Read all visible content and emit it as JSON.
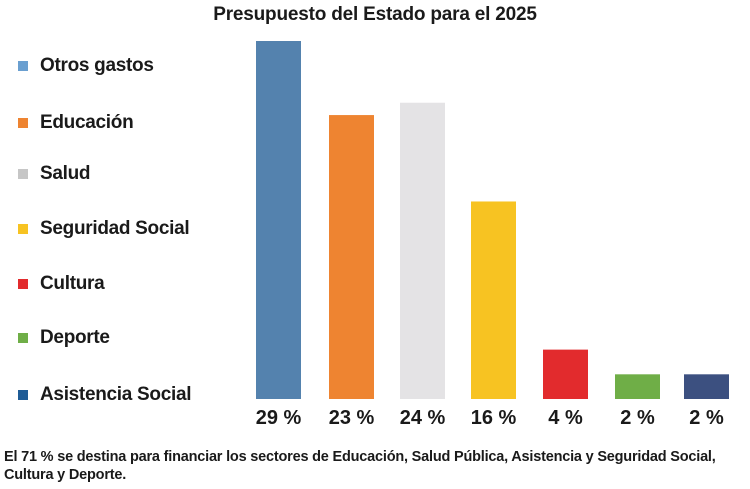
{
  "chart_data": {
    "type": "bar",
    "title": "Presupuesto del Estado para el 2025",
    "categories": [
      "Otros gastos",
      "Educación",
      "Salud",
      "Seguridad Social",
      "Cultura",
      "Deporte",
      "Asistencia Social"
    ],
    "values": [
      29,
      23,
      24,
      16,
      4,
      2,
      2
    ],
    "value_labels": [
      "29 %",
      "23 %",
      "24 %",
      "16 %",
      "4 %",
      "2 %",
      "2 %"
    ],
    "legend_colors": [
      "#6a9fd0",
      "#ee8431",
      "#c6c6c6",
      "#f7c322",
      "#e22b2d",
      "#6fae47",
      "#1f5c96"
    ],
    "bar_colors": [
      "#5482ae",
      "#ee8431",
      "#e4e3e5",
      "#f7c322",
      "#e22b2d",
      "#6fae47",
      "#3c5080"
    ],
    "ylim": [
      0,
      29
    ],
    "legend_placement": "left",
    "grid": false
  },
  "footnote": "El 71 % se destina para financiar los sectores de Educación, Salud Pública, Asistencia y Seguridad Social, Cultura y Deporte."
}
